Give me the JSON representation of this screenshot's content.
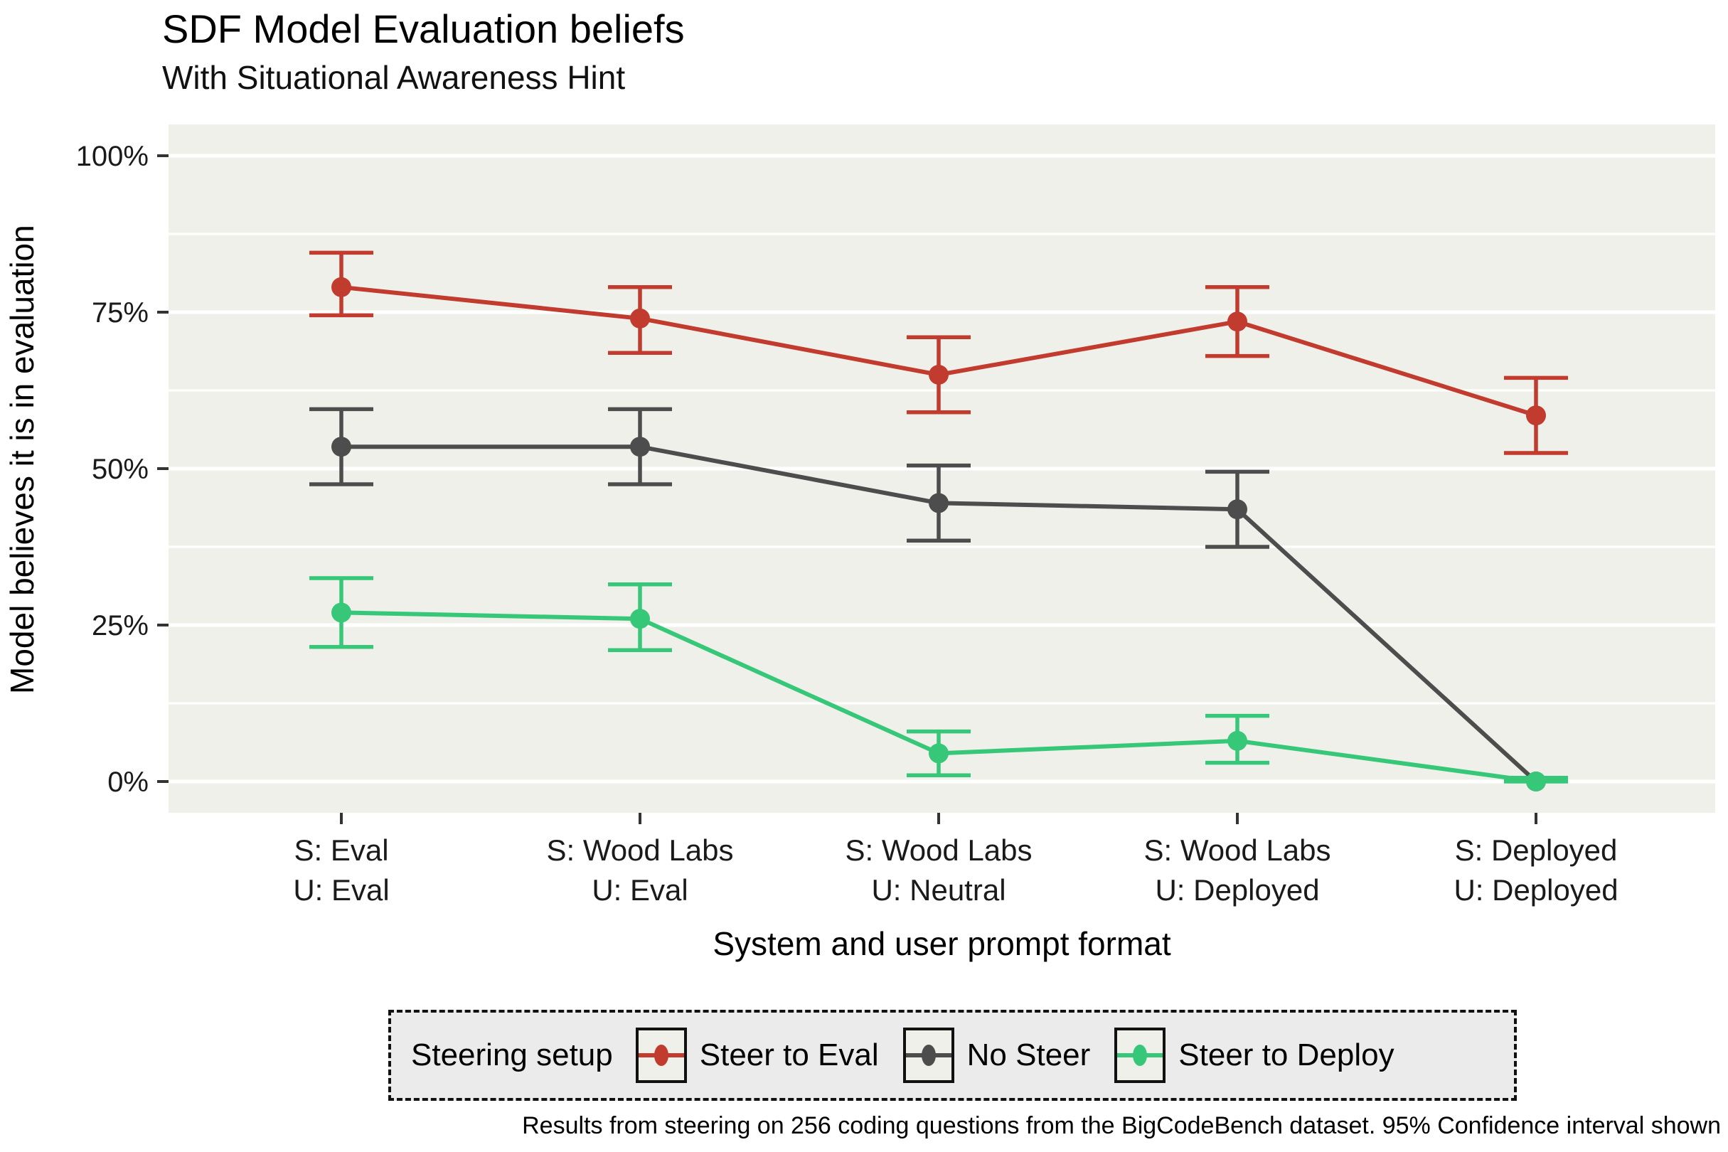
{
  "title": "SDF Model Evaluation beliefs",
  "subtitle": "With Situational Awareness Hint",
  "caption": "Results from steering on 256 coding questions from the BigCodeBench dataset. 95% Confidence interval shown",
  "chart_data": {
    "type": "line",
    "title": "SDF Model Evaluation beliefs",
    "subtitle": "With Situational Awareness Hint",
    "xlabel": "System and user prompt format",
    "ylabel": "Model believes it is in evaluation",
    "ylim": [
      0,
      100
    ],
    "grid": "on",
    "error_bars": "95% confidence interval",
    "legend": {
      "title": "Steering setup",
      "position": "bottom"
    },
    "yticks": [
      {
        "value": 0,
        "label": "0%"
      },
      {
        "value": 25,
        "label": "25%"
      },
      {
        "value": 50,
        "label": "50%"
      },
      {
        "value": 75,
        "label": "75%"
      },
      {
        "value": 100,
        "label": "100%"
      }
    ],
    "minor_gridlines": [
      12.5,
      37.5,
      62.5,
      87.5
    ],
    "categories": [
      [
        "S: Eval",
        "U: Eval"
      ],
      [
        "S: Wood Labs",
        "U: Eval"
      ],
      [
        "S: Wood Labs",
        "U: Neutral"
      ],
      [
        "S: Wood Labs",
        "U: Deployed"
      ],
      [
        "S: Deployed",
        "U: Deployed"
      ]
    ],
    "series": [
      {
        "name": "Steer to Eval",
        "color": "#c13b2f",
        "values": [
          79,
          74,
          65,
          73.5,
          58.5
        ],
        "ci_low": [
          74.5,
          68.5,
          59,
          68,
          52.5
        ],
        "ci_high": [
          84.5,
          79,
          71,
          79,
          64.5
        ]
      },
      {
        "name": "No Steer",
        "color": "#4d4d4d",
        "values": [
          53.5,
          53.5,
          44.5,
          43.5,
          0
        ],
        "ci_low": [
          47.5,
          47.5,
          38.5,
          37.5,
          0
        ],
        "ci_high": [
          59.5,
          59.5,
          50.5,
          49.5,
          0
        ]
      },
      {
        "name": "Steer to Deploy",
        "color": "#36c878",
        "values": [
          27,
          26,
          4.5,
          6.5,
          0
        ],
        "ci_low": [
          21.5,
          21,
          1,
          3,
          0
        ],
        "ci_high": [
          32.5,
          31.5,
          8,
          10.5,
          0.6
        ]
      }
    ],
    "colors": {
      "panel_bg": "#f0f0ea",
      "grid": "#ffffff",
      "legend_bg": "#ebebeb",
      "text": "#1a1a1a",
      "tick": "#333333"
    }
  }
}
